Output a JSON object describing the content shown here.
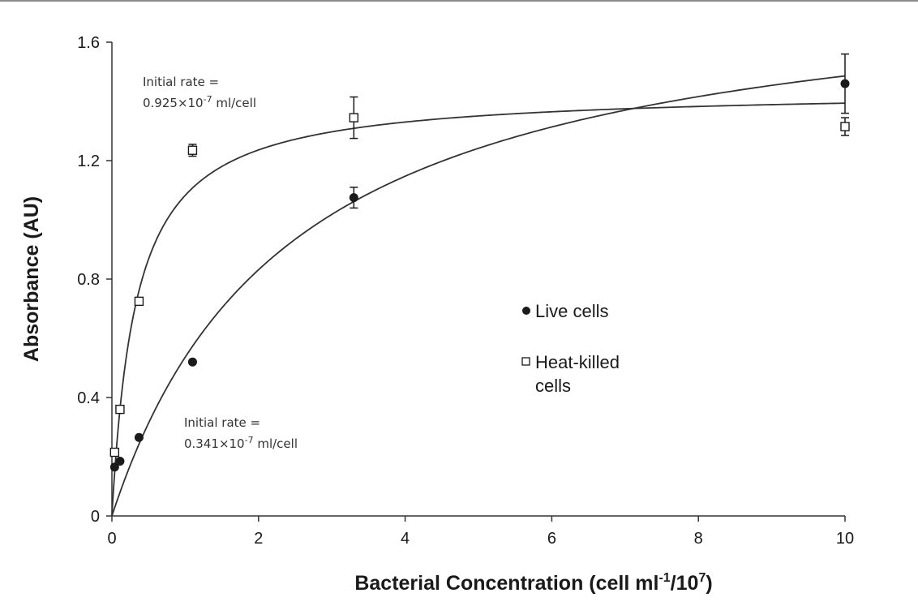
{
  "chart_data": {
    "type": "scatter",
    "xlabel_main": "Bacterial Concentration (cell ml",
    "xlabel_sup1": "-1",
    "xlabel_mid": "/10",
    "xlabel_sup2": "7",
    "xlabel_end": ")",
    "ylabel": "Absorbance (AU)",
    "xlim": [
      0,
      10
    ],
    "ylim": [
      0,
      1.6
    ],
    "x_ticks": [
      "0",
      "2",
      "4",
      "6",
      "8",
      "10"
    ],
    "y_ticks": [
      "0",
      "0.4",
      "0.8",
      "1.2",
      "1.6"
    ],
    "grid": false,
    "legend_position": "right-middle",
    "series": [
      {
        "name": "Live cells",
        "marker": "filled-circle",
        "points": [
          {
            "x": 0.037,
            "y": 0.165
          },
          {
            "x": 0.11,
            "y": 0.185
          },
          {
            "x": 0.37,
            "y": 0.265
          },
          {
            "x": 1.1,
            "y": 0.52
          },
          {
            "x": 3.3,
            "y": 1.075,
            "err": 0.035
          },
          {
            "x": 10,
            "y": 1.46,
            "err": 0.1
          }
        ],
        "fit": {
          "model": "hyperbolic",
          "vmax": 1.85,
          "k": 2.45
        }
      },
      {
        "name": "Heat-killed cells",
        "name_line1": "Heat-killed",
        "name_line2": "cells",
        "marker": "open-square",
        "points": [
          {
            "x": 0.037,
            "y": 0.215
          },
          {
            "x": 0.11,
            "y": 0.36
          },
          {
            "x": 0.37,
            "y": 0.725
          },
          {
            "x": 1.1,
            "y": 1.235,
            "err": 0.02
          },
          {
            "x": 3.3,
            "y": 1.345,
            "err": 0.07
          },
          {
            "x": 10,
            "y": 1.315,
            "err": 0.03
          }
        ],
        "fit": {
          "model": "hyperbolic",
          "vmax": 1.44,
          "k": 0.33
        }
      }
    ],
    "annotations": [
      {
        "line1": "Initial rate =",
        "line2_prefix": "0.925×10",
        "line2_sup": "-7",
        "line2_suffix": " ml/cell"
      },
      {
        "line1": "Initial rate =",
        "line2_prefix": "0.341×10",
        "line2_sup": "-7",
        "line2_suffix": " ml/cell"
      }
    ]
  }
}
